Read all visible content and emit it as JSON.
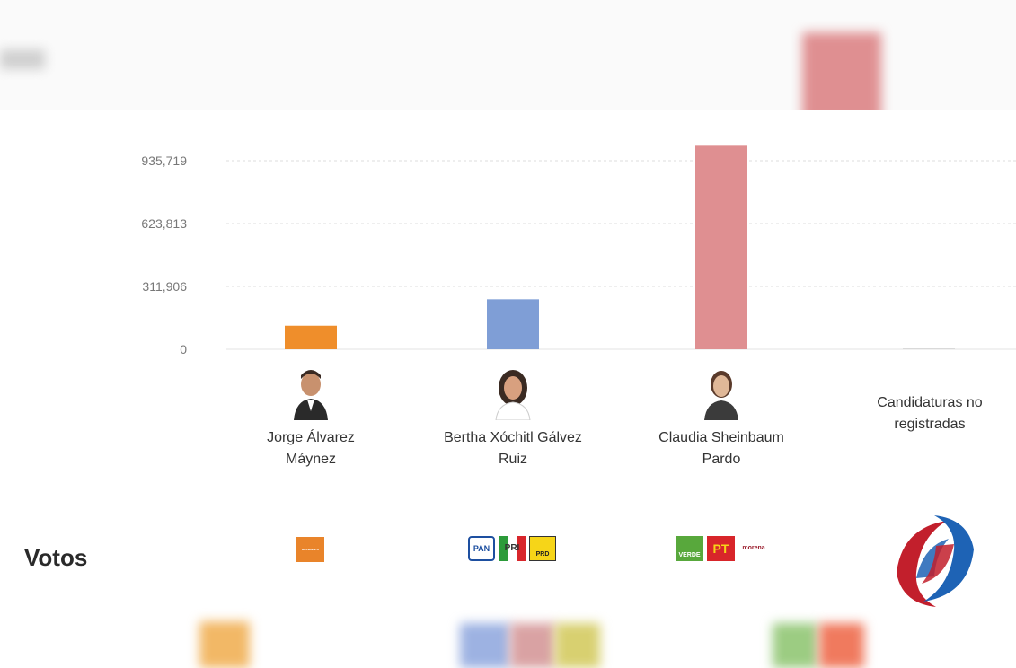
{
  "chart_data": {
    "type": "bar",
    "categories": [
      "Jorge Álvarez Máynez",
      "Bertha Xóchitl Gálvez Ruiz",
      "Claudia Sheinbaum Pardo",
      "Candidaturas no registradas"
    ],
    "values": [
      117000,
      248000,
      1010000,
      2000
    ],
    "colors": [
      "#ef8e2b",
      "#7f9ed6",
      "#df8f91",
      "#d9d9d9"
    ],
    "yticks": [
      "0",
      "311,906",
      "623,813",
      "935,719"
    ],
    "ytick_values": [
      0,
      311906,
      623813,
      935719
    ],
    "ylim": [
      0,
      1040000
    ],
    "grid": true,
    "title": "",
    "xlabel": "",
    "ylabel": ""
  },
  "candidates": [
    {
      "name_line1": "Jorge Álvarez",
      "name_line2": "Máynez",
      "parties": [
        "MOVIMIENTO CIUDADANO"
      ]
    },
    {
      "name_line1": "Bertha Xóchitl Gálvez",
      "name_line2": "Ruiz",
      "parties": [
        "PAN",
        "PRI",
        "PRD"
      ]
    },
    {
      "name_line1": "Claudia Sheinbaum",
      "name_line2": "Pardo",
      "parties": [
        "VERDE",
        "PT",
        "morena"
      ]
    },
    {
      "name_line1": "Candidaturas no",
      "name_line2": "registradas"
    }
  ],
  "section_label": "Votos",
  "party_labels": {
    "mc": "MOVIMIENTO CIUDADANO",
    "pan": "PAN",
    "pri": "PRI",
    "prd": "PRD",
    "verde": "VERDE",
    "pt": "PT",
    "morena": "morena"
  }
}
